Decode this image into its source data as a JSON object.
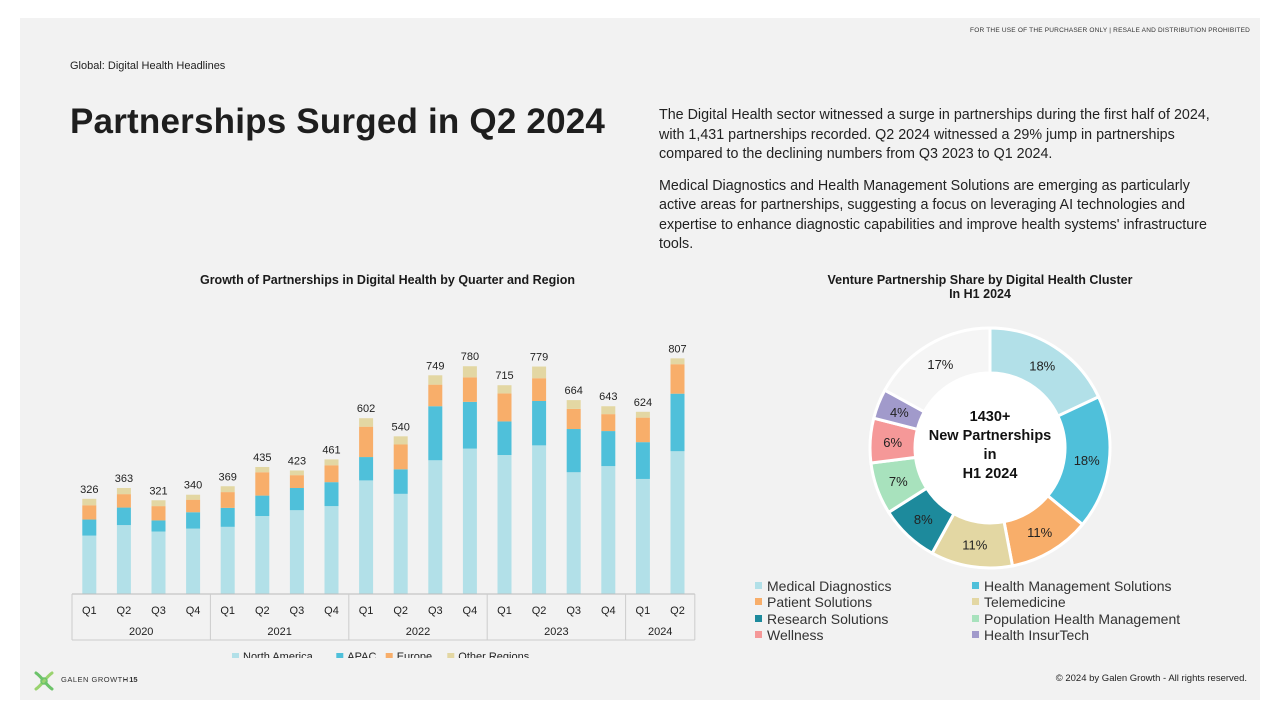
{
  "header": {
    "disclaimer": "FOR THE USE OF THE PURCHASER ONLY | RESALE AND DISTRIBUTION PROHIBITED",
    "eyebrow": "Global: Digital Health Headlines",
    "title": "Partnerships Surged in Q2 2024"
  },
  "body": {
    "p1": "The Digital Health sector witnessed a surge in partnerships during the first half of 2024, with 1,431 partnerships recorded. Q2 2024 witnessed a 29% jump in partnerships compared to the declining numbers from Q3 2023 to Q1 2024.",
    "p2": "Medical Diagnostics and Health Management Solutions are emerging as particularly active areas for partnerships, suggesting a focus on leveraging AI technologies and expertise to enhance diagnostic capabilities and improve health systems' infrastructure tools."
  },
  "footer": {
    "brand": "GALEN GROWTH",
    "page": "– 15",
    "copyright": "© 2024 by Galen Growth - All rights reserved."
  },
  "chart_data": [
    {
      "type": "bar",
      "stacked": true,
      "title": "Growth of Partnerships in Digital Health by Quarter and Region",
      "categories": [
        "Q1",
        "Q2",
        "Q3",
        "Q4",
        "Q1",
        "Q2",
        "Q3",
        "Q4",
        "Q1",
        "Q2",
        "Q3",
        "Q4",
        "Q1",
        "Q2",
        "Q3",
        "Q4",
        "Q1",
        "Q2"
      ],
      "year_groups": [
        {
          "label": "2020",
          "count": 4
        },
        {
          "label": "2021",
          "count": 4
        },
        {
          "label": "2022",
          "count": 4
        },
        {
          "label": "2023",
          "count": 4
        },
        {
          "label": "2024",
          "count": 2
        }
      ],
      "totals": [
        326,
        363,
        321,
        340,
        369,
        435,
        423,
        461,
        602,
        540,
        749,
        780,
        715,
        779,
        664,
        643,
        624,
        807
      ],
      "series": [
        {
          "name": "North America",
          "color": "#b2e0e8",
          "values": [
            200,
            236,
            214,
            224,
            230,
            267,
            287,
            301,
            389,
            343,
            458,
            498,
            476,
            509,
            417,
            438,
            394,
            489
          ]
        },
        {
          "name": "APAC",
          "color": "#4fc0da",
          "values": [
            55,
            60,
            38,
            56,
            65,
            70,
            76,
            82,
            80,
            84,
            185,
            160,
            115,
            152,
            148,
            120,
            126,
            197
          ]
        },
        {
          "name": "Europe",
          "color": "#f8ae6a",
          "values": [
            49,
            46,
            49,
            43,
            54,
            80,
            44,
            58,
            104,
            85,
            74,
            84,
            96,
            78,
            69,
            58,
            84,
            101
          ]
        },
        {
          "name": "Other Regions",
          "color": "#e3d7a3",
          "values": [
            22,
            21,
            20,
            17,
            20,
            18,
            16,
            20,
            29,
            28,
            32,
            38,
            28,
            40,
            30,
            27,
            20,
            20
          ]
        }
      ],
      "ylim": [
        0,
        900
      ]
    },
    {
      "type": "pie",
      "donut": true,
      "title": "Venture Partnership Share by Digital Health Cluster",
      "subtitle": "In H1 2024",
      "center_text": [
        "1430+",
        "New Partnerships",
        "in",
        "H1 2024"
      ],
      "slices": [
        {
          "name": "Medical Diagnostics",
          "value": 18,
          "label": "18%",
          "color": "#b2e0e8"
        },
        {
          "name": "Health Management Solutions",
          "value": 18,
          "label": "18%",
          "color": "#4fc0da"
        },
        {
          "name": "Patient Solutions",
          "value": 11,
          "label": "11%",
          "color": "#f8ae6a"
        },
        {
          "name": "Telemedicine",
          "value": 11,
          "label": "11%",
          "color": "#e3d7a3"
        },
        {
          "name": "Research Solutions",
          "value": 8,
          "label": "8%",
          "color": "#1d8a9c"
        },
        {
          "name": "Population Health Management",
          "value": 7,
          "label": "7%",
          "color": "#a8e2bd"
        },
        {
          "name": "Wellness",
          "value": 6,
          "label": "6%",
          "color": "#f59898"
        },
        {
          "name": "Health InsurTech",
          "value": 4,
          "label": "4%",
          "color": "#a19acb"
        },
        {
          "name": "",
          "value": 17,
          "label": "17%",
          "color": "#f5f5f5"
        }
      ]
    }
  ]
}
